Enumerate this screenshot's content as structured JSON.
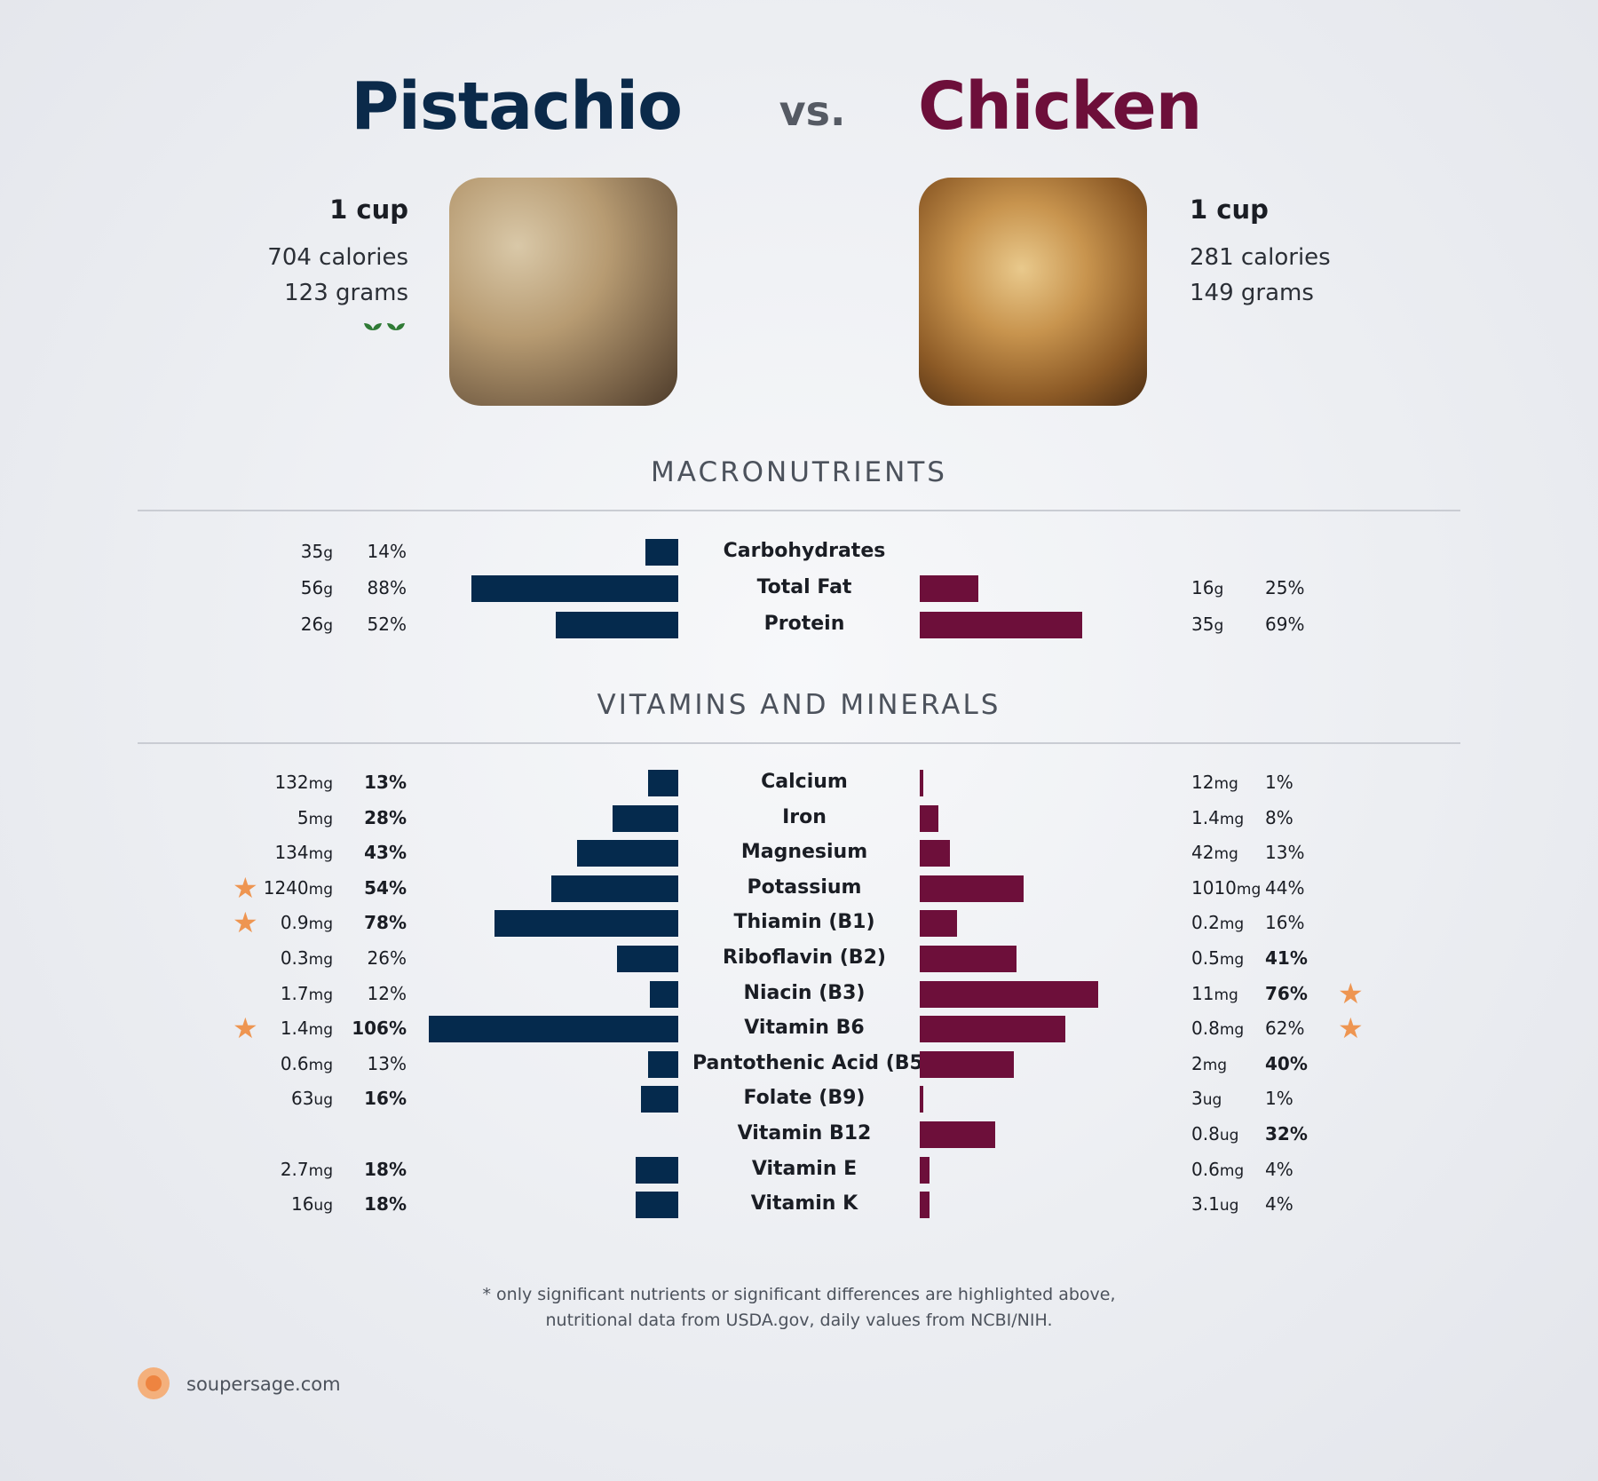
{
  "header": {
    "left_title": "Pistachio",
    "vs": "vs.",
    "right_title": "Chicken"
  },
  "left_food": {
    "serving": "1 cup",
    "calories": "704 calories",
    "grams": "123 grams",
    "badge_icon": "sprout-icon"
  },
  "right_food": {
    "serving": "1 cup",
    "calories": "281 calories",
    "grams": "149 grams"
  },
  "sections": {
    "macro": "MACRONUTRIENTS",
    "vitamins": "VITAMINS AND MINERALS"
  },
  "colors": {
    "left": "#052a4d",
    "right": "#6d0f3a",
    "star": "#ee9551"
  },
  "chart_data": [
    {
      "type": "bar",
      "title": "MACRONUTRIENTS",
      "categories": [
        "Carbohydrates",
        "Total Fat",
        "Protein"
      ],
      "series": [
        {
          "name": "Pistachio",
          "amount": [
            "35",
            "56",
            "26"
          ],
          "unit": [
            "g",
            "g",
            "g"
          ],
          "pct_label": [
            "14%",
            "88%",
            "52%"
          ],
          "values": [
            14,
            88,
            52
          ],
          "bold": [
            false,
            false,
            false
          ],
          "star": [
            false,
            false,
            false
          ]
        },
        {
          "name": "Chicken",
          "amount": [
            "",
            "16",
            "35"
          ],
          "unit": [
            "",
            "g",
            "g"
          ],
          "pct_label": [
            "",
            "25%",
            "69%"
          ],
          "values": [
            0,
            25,
            69
          ],
          "bold": [
            false,
            false,
            false
          ],
          "star": [
            false,
            false,
            false
          ]
        }
      ]
    },
    {
      "type": "bar",
      "title": "VITAMINS AND MINERALS",
      "categories": [
        "Calcium",
        "Iron",
        "Magnesium",
        "Potassium",
        "Thiamin (B1)",
        "Riboflavin (B2)",
        "Niacin (B3)",
        "Vitamin B6",
        "Pantothenic Acid (B5)",
        "Folate (B9)",
        "Vitamin B12",
        "Vitamin E",
        "Vitamin K"
      ],
      "series": [
        {
          "name": "Pistachio",
          "amount": [
            "132",
            "5",
            "134",
            "1240",
            "0.9",
            "0.3",
            "1.7",
            "1.4",
            "0.6",
            "63",
            "",
            "2.7",
            "16"
          ],
          "unit": [
            "mg",
            "mg",
            "mg",
            "mg",
            "mg",
            "mg",
            "mg",
            "mg",
            "mg",
            "ug",
            "",
            "mg",
            "ug"
          ],
          "pct_label": [
            "13%",
            "28%",
            "43%",
            "54%",
            "78%",
            "26%",
            "12%",
            "106%",
            "13%",
            "16%",
            "",
            "18%",
            "18%"
          ],
          "values": [
            13,
            28,
            43,
            54,
            78,
            26,
            12,
            106,
            13,
            16,
            0,
            18,
            18
          ],
          "bold": [
            true,
            true,
            true,
            true,
            true,
            false,
            false,
            true,
            false,
            true,
            false,
            true,
            true
          ],
          "star": [
            false,
            false,
            false,
            true,
            true,
            false,
            false,
            true,
            false,
            false,
            false,
            false,
            false
          ]
        },
        {
          "name": "Chicken",
          "amount": [
            "12",
            "1.4",
            "42",
            "1010",
            "0.2",
            "0.5",
            "11",
            "0.8",
            "2",
            "3",
            "0.8",
            "0.6",
            "3.1"
          ],
          "unit": [
            "mg",
            "mg",
            "mg",
            "mg",
            "mg",
            "mg",
            "mg",
            "mg",
            "mg",
            "ug",
            "ug",
            "mg",
            "ug"
          ],
          "pct_label": [
            "1%",
            "8%",
            "13%",
            "44%",
            "16%",
            "41%",
            "76%",
            "62%",
            "40%",
            "1%",
            "32%",
            "4%",
            "4%"
          ],
          "values": [
            1,
            8,
            13,
            44,
            16,
            41,
            76,
            62,
            40,
            1,
            32,
            4,
            4
          ],
          "bold": [
            false,
            false,
            false,
            false,
            false,
            true,
            true,
            false,
            true,
            false,
            true,
            false,
            false
          ],
          "star": [
            false,
            false,
            false,
            false,
            false,
            false,
            true,
            true,
            false,
            false,
            false,
            false,
            false
          ]
        }
      ]
    }
  ],
  "footnote": {
    "line1": "* only significant nutrients or significant differences are highlighted above,",
    "line2": "nutritional data from USDA.gov, daily values from NCBI/NIH."
  },
  "brand": "soupersage.com"
}
